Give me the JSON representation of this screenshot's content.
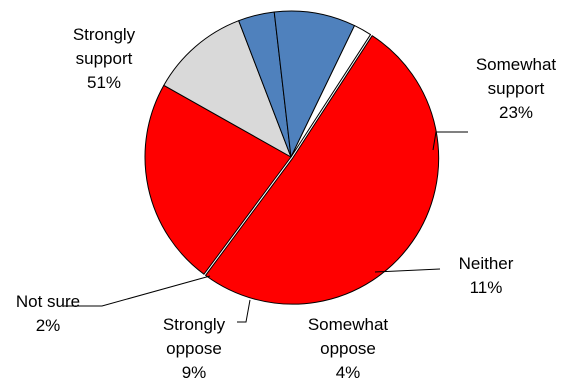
{
  "chart_data": {
    "type": "pie",
    "title": "",
    "slices": [
      {
        "name": "Strongly support",
        "lines": [
          "Strongly",
          "support"
        ],
        "value_label": "51%",
        "value": 51,
        "color": "#ff0000"
      },
      {
        "name": "Somewhat support",
        "lines": [
          "Somewhat",
          "support"
        ],
        "value_label": "23%",
        "value": 23,
        "color": "#ff0000"
      },
      {
        "name": "Neither",
        "lines": [
          "Neither"
        ],
        "value_label": "11%",
        "value": 11,
        "color": "#d9d9d9"
      },
      {
        "name": "Somewhat oppose",
        "lines": [
          "Somewhat",
          "oppose"
        ],
        "value_label": "4%",
        "value": 4,
        "color": "#4f81bd"
      },
      {
        "name": "Strongly oppose",
        "lines": [
          "Strongly",
          "oppose"
        ],
        "value_label": "9%",
        "value": 9,
        "color": "#4f81bd"
      },
      {
        "name": "Not sure",
        "lines": [
          "Not sure"
        ],
        "value_label": "2%",
        "value": 2,
        "color": "#ffffff"
      }
    ],
    "legend": "none",
    "slice_border_color": "#000000"
  }
}
